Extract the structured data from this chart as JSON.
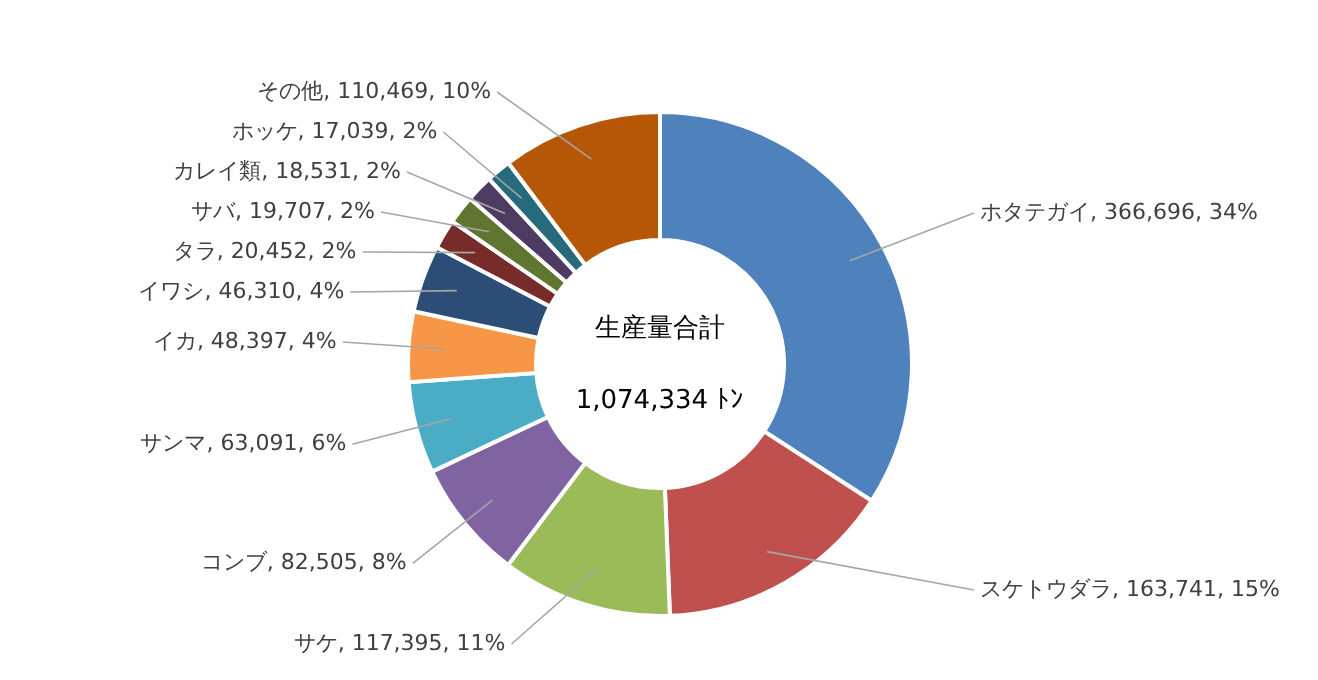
{
  "chart_data": {
    "type": "donut",
    "categories": [
      "ホタテガイ",
      "スケトウダラ",
      "サケ",
      "コンブ",
      "サンマ",
      "イカ",
      "イワシ",
      "タラ",
      "サバ",
      "カレイ類",
      "ホッケ",
      "その他"
    ],
    "values": [
      366696,
      163741,
      117395,
      82505,
      63091,
      48397,
      46310,
      20452,
      19707,
      18531,
      17039,
      110469
    ],
    "value_labels": [
      "366,696, 34%",
      "163,741, 15%",
      "117,395, 11%",
      "82,505, 8%",
      "63,091, 6%",
      "48,397, 4%",
      "46,310, 4%",
      "20,452, 2%",
      "19,707, 2%",
      "18,531, 2%",
      "17,039, 2%",
      "110,469, 10%"
    ],
    "colors": [
      "#4f81bd",
      "#c0504d",
      "#9bbb59",
      "#8064a2",
      "#4bacc6",
      "#f79646",
      "#2c4d75",
      "#772c2a",
      "#5f7530",
      "#4d3b62",
      "#276a7c",
      "#b65708"
    ],
    "annotations": [
      "生産量合計",
      "1,074,334 ﾄﾝ"
    ]
  }
}
